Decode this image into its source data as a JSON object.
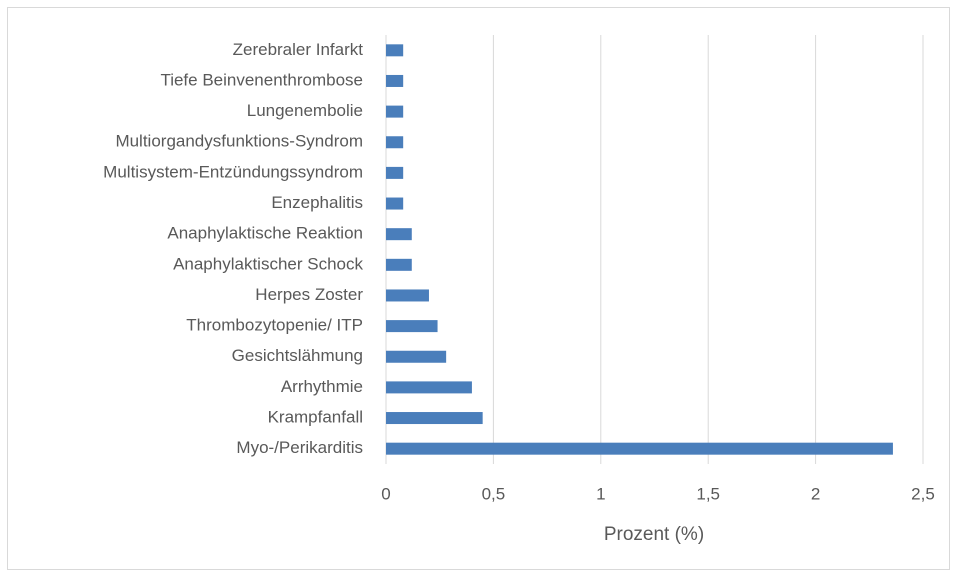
{
  "chart_data": {
    "type": "bar",
    "orientation": "horizontal",
    "x_label": "Prozent (%)",
    "categories": [
      "Zerebraler Infarkt",
      "Tiefe Beinvenenthrombose",
      "Lungenembolie",
      "Multiorgandysfunktions-Syndrom",
      "Multisystem-Entzündungssyndrom",
      "Enzephalitis",
      "Anaphylaktische Reaktion",
      "Anaphylaktischer Schock",
      "Herpes Zoster",
      "Thrombozytopenie/ ITP",
      "Gesichtslähmung",
      "Arrhythmie",
      "Krampfanfall",
      "Myo-/Perikarditis"
    ],
    "values": [
      0.08,
      0.08,
      0.08,
      0.08,
      0.08,
      0.08,
      0.12,
      0.12,
      0.2,
      0.24,
      0.28,
      0.4,
      0.45,
      2.36
    ],
    "color": "#4a7ebb",
    "xlim": [
      0,
      2.5
    ],
    "xticks": [
      0,
      {
        "value": 0.5,
        "label": "0,5"
      },
      1,
      {
        "value": 1.5,
        "label": "1,5"
      },
      2,
      {
        "value": 2.5,
        "label": "2,5"
      }
    ],
    "grid": true
  }
}
